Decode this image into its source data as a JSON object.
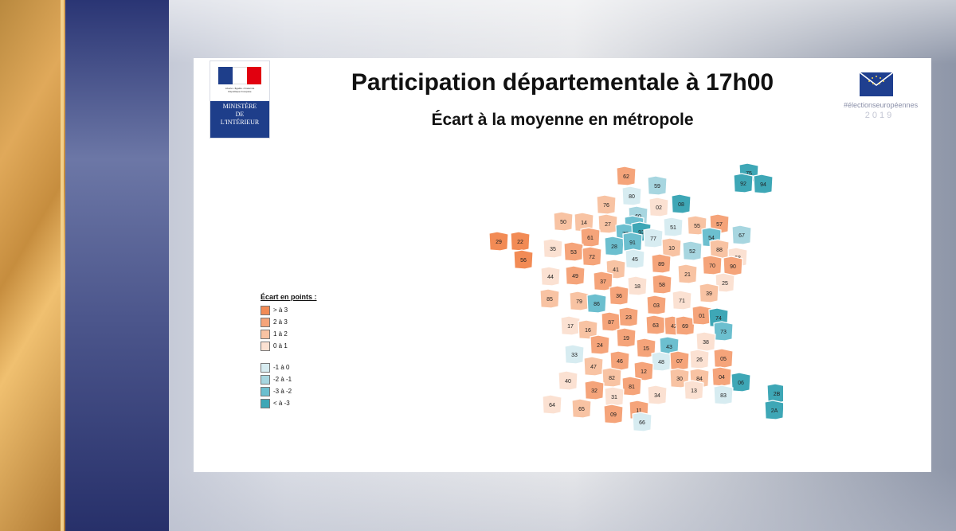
{
  "slide": {
    "title": "Participation départementale à 17h00",
    "subtitle": "Écart à la moyenne en métropole"
  },
  "logos": {
    "ministry": {
      "lines": [
        "MINISTÈRE",
        "DE",
        "L'INTÉRIEUR"
      ],
      "motto": "Liberté • Égalité • Fraternité",
      "country": "République Française",
      "flag_colors": [
        "#1e3e8a",
        "#ffffff",
        "#e1000f"
      ]
    },
    "elections": {
      "text": "#électionseuropéennes",
      "year": "2019",
      "icon": "envelope-with-stars-icon"
    }
  },
  "legend": {
    "title": "Écart en points :",
    "items": [
      {
        "label": "> à 3",
        "color": "#f28b55"
      },
      {
        "label": "2 à 3",
        "color": "#f5a47a"
      },
      {
        "label": "1 à 2",
        "color": "#f8c3a3"
      },
      {
        "label": "0 à 1",
        "color": "#fbe1d2"
      },
      {
        "label": "-1 à 0",
        "color": "#d7ecf1"
      },
      {
        "label": "-2 à -1",
        "color": "#a7d6e0"
      },
      {
        "label": "-3 à -2",
        "color": "#6cbfcf"
      },
      {
        "label": "< à -3",
        "color": "#3ea7b6"
      }
    ]
  },
  "departments": [
    {
      "code": "62",
      "cls": 1
    },
    {
      "code": "59",
      "cls": 5
    },
    {
      "code": "80",
      "cls": 4
    },
    {
      "code": "02",
      "cls": 3
    },
    {
      "code": "08",
      "cls": 7
    },
    {
      "code": "76",
      "cls": 2
    },
    {
      "code": "60",
      "cls": 5
    },
    {
      "code": "50",
      "cls": 2
    },
    {
      "code": "14",
      "cls": 2
    },
    {
      "code": "27",
      "cls": 2
    },
    {
      "code": "95",
      "cls": 6
    },
    {
      "code": "51",
      "cls": 4
    },
    {
      "code": "55",
      "cls": 2
    },
    {
      "code": "57",
      "cls": 1
    },
    {
      "code": "67",
      "cls": 5
    },
    {
      "code": "29",
      "cls": 0
    },
    {
      "code": "22",
      "cls": 0
    },
    {
      "code": "61",
      "cls": 1
    },
    {
      "code": "78",
      "cls": 6
    },
    {
      "code": "93",
      "cls": 7
    },
    {
      "code": "77",
      "cls": 4
    },
    {
      "code": "54",
      "cls": 6
    },
    {
      "code": "35",
      "cls": 3
    },
    {
      "code": "53",
      "cls": 1
    },
    {
      "code": "72",
      "cls": 1
    },
    {
      "code": "28",
      "cls": 6
    },
    {
      "code": "91",
      "cls": 6
    },
    {
      "code": "10",
      "cls": 2
    },
    {
      "code": "52",
      "cls": 5
    },
    {
      "code": "88",
      "cls": 2
    },
    {
      "code": "56",
      "cls": 0
    },
    {
      "code": "45",
      "cls": 4
    },
    {
      "code": "68",
      "cls": 3
    },
    {
      "code": "44",
      "cls": 3
    },
    {
      "code": "49",
      "cls": 1
    },
    {
      "code": "41",
      "cls": 2
    },
    {
      "code": "89",
      "cls": 1
    },
    {
      "code": "70",
      "cls": 1
    },
    {
      "code": "90",
      "cls": 1
    },
    {
      "code": "37",
      "cls": 1
    },
    {
      "code": "21",
      "cls": 2
    },
    {
      "code": "25",
      "cls": 3
    },
    {
      "code": "18",
      "cls": 3
    },
    {
      "code": "58",
      "cls": 1
    },
    {
      "code": "85",
      "cls": 2
    },
    {
      "code": "79",
      "cls": 2
    },
    {
      "code": "86",
      "cls": 6
    },
    {
      "code": "36",
      "cls": 1
    },
    {
      "code": "71",
      "cls": 3
    },
    {
      "code": "39",
      "cls": 2
    },
    {
      "code": "03",
      "cls": 1
    },
    {
      "code": "17",
      "cls": 3
    },
    {
      "code": "87",
      "cls": 1
    },
    {
      "code": "23",
      "cls": 1
    },
    {
      "code": "63",
      "cls": 1
    },
    {
      "code": "42",
      "cls": 1
    },
    {
      "code": "69",
      "cls": 1
    },
    {
      "code": "01",
      "cls": 1
    },
    {
      "code": "74",
      "cls": 7
    },
    {
      "code": "16",
      "cls": 2
    },
    {
      "code": "73",
      "cls": 6
    },
    {
      "code": "33",
      "cls": 4
    },
    {
      "code": "19",
      "cls": 1
    },
    {
      "code": "15",
      "cls": 1
    },
    {
      "code": "43",
      "cls": 6
    },
    {
      "code": "38",
      "cls": 3
    },
    {
      "code": "24",
      "cls": 1
    },
    {
      "code": "46",
      "cls": 1
    },
    {
      "code": "48",
      "cls": 4
    },
    {
      "code": "07",
      "cls": 1
    },
    {
      "code": "26",
      "cls": 3
    },
    {
      "code": "05",
      "cls": 1
    },
    {
      "code": "47",
      "cls": 2
    },
    {
      "code": "12",
      "cls": 1
    },
    {
      "code": "84",
      "cls": 2
    },
    {
      "code": "04",
      "cls": 1
    },
    {
      "code": "06",
      "cls": 7
    },
    {
      "code": "40",
      "cls": 3
    },
    {
      "code": "82",
      "cls": 2
    },
    {
      "code": "30",
      "cls": 2
    },
    {
      "code": "32",
      "cls": 1
    },
    {
      "code": "81",
      "cls": 1
    },
    {
      "code": "13",
      "cls": 3
    },
    {
      "code": "83",
      "cls": 4
    },
    {
      "code": "34",
      "cls": 3
    },
    {
      "code": "64",
      "cls": 3
    },
    {
      "code": "65",
      "cls": 2
    },
    {
      "code": "31",
      "cls": 3
    },
    {
      "code": "09",
      "cls": 1
    },
    {
      "code": "11",
      "cls": 1
    },
    {
      "code": "66",
      "cls": 4
    },
    {
      "code": "2B",
      "cls": 7
    },
    {
      "code": "2A",
      "cls": 7
    },
    {
      "code": "75",
      "cls": 7
    },
    {
      "code": "92",
      "cls": 7
    },
    {
      "code": "94",
      "cls": 7
    }
  ]
}
